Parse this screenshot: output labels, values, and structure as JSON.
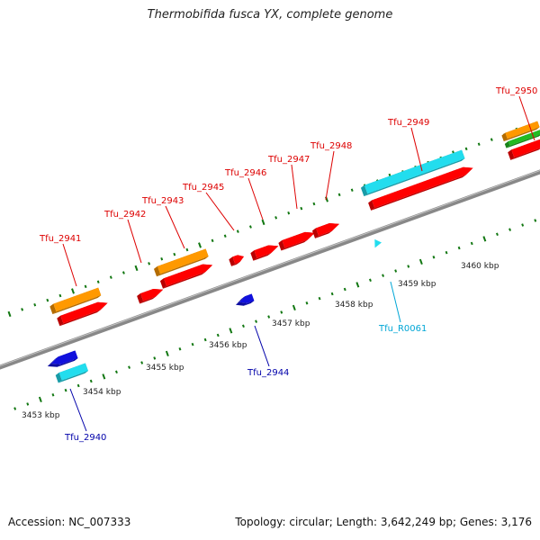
{
  "title": "Thermobifida fusca YX, complete genome",
  "footer": {
    "accession": "Accession: NC_007333",
    "summary": "Topology: circular; Length: 3,642,249 bp; Genes: 3,176"
  },
  "colors": {
    "cds": "#ff0000",
    "gene": "#ff9900",
    "rna": "#22ddee",
    "reverse_cds": "#1111dd",
    "misc": "#22bb22",
    "backbone": "#888888",
    "tick": "#117711",
    "label_forward": "#dd0000",
    "label_reverse": "#0000aa",
    "label_rna": "#00a6d6"
  },
  "scale": {
    "unit": "kbp",
    "labels": [
      "3453 kbp",
      "3454 kbp",
      "3455 kbp",
      "3456 kbp",
      "3457 kbp",
      "3458 kbp",
      "3459 kbp",
      "3460 kbp"
    ]
  },
  "genes_forward": [
    {
      "id": "Tfu_2941"
    },
    {
      "id": "Tfu_2942"
    },
    {
      "id": "Tfu_2943"
    },
    {
      "id": "Tfu_2945"
    },
    {
      "id": "Tfu_2946"
    },
    {
      "id": "Tfu_2947"
    },
    {
      "id": "Tfu_2948"
    },
    {
      "id": "Tfu_2949"
    },
    {
      "id": "Tfu_2950"
    }
  ],
  "genes_reverse": [
    {
      "id": "Tfu_2940"
    },
    {
      "id": "Tfu_2944"
    },
    {
      "id": "Tfu_R0061"
    }
  ]
}
